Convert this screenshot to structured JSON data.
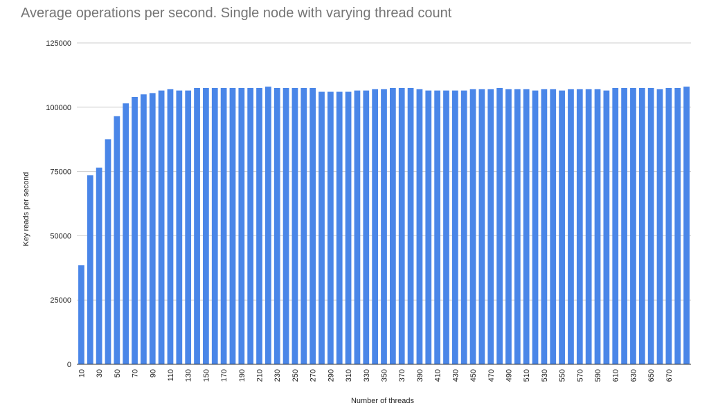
{
  "chart_data": {
    "type": "bar",
    "title": "Average operations per second. Single node with varying thread count",
    "xlabel": "Number of threads",
    "ylabel": "Key reads per second",
    "ylim": [
      0,
      125000
    ],
    "yticks": [
      0,
      25000,
      50000,
      75000,
      100000,
      125000
    ],
    "grid": true,
    "legend": "none",
    "bar_color": "#4a86e8",
    "categories": [
      10,
      20,
      30,
      40,
      50,
      60,
      70,
      80,
      90,
      100,
      110,
      120,
      130,
      140,
      150,
      160,
      170,
      180,
      190,
      200,
      210,
      220,
      230,
      240,
      250,
      260,
      270,
      280,
      290,
      300,
      310,
      320,
      330,
      340,
      350,
      360,
      370,
      380,
      390,
      400,
      410,
      420,
      430,
      440,
      450,
      460,
      470,
      480,
      490,
      500,
      510,
      520,
      530,
      540,
      550,
      560,
      570,
      580,
      590,
      600,
      610,
      620,
      630,
      640,
      650,
      660,
      670,
      680,
      690
    ],
    "x_tick_labels": [
      "10",
      "30",
      "50",
      "70",
      "90",
      "110",
      "130",
      "150",
      "170",
      "190",
      "210",
      "230",
      "250",
      "270",
      "290",
      "310",
      "330",
      "350",
      "370",
      "390",
      "410",
      "430",
      "450",
      "470",
      "490",
      "510",
      "530",
      "550",
      "570",
      "590",
      "610",
      "630",
      "650",
      "670"
    ],
    "values": [
      38500,
      73500,
      76500,
      87500,
      96500,
      101500,
      104000,
      105000,
      105500,
      106500,
      107000,
      106500,
      106500,
      107500,
      107500,
      107500,
      107500,
      107500,
      107500,
      107500,
      107500,
      108000,
      107500,
      107500,
      107500,
      107500,
      107500,
      106000,
      106000,
      106000,
      106000,
      106500,
      106500,
      107000,
      107000,
      107500,
      107500,
      107500,
      107000,
      106500,
      106500,
      106500,
      106500,
      106500,
      107000,
      107000,
      107000,
      107500,
      107000,
      107000,
      107000,
      106500,
      107000,
      107000,
      106500,
      107000,
      107000,
      107000,
      107000,
      106500,
      107500,
      107500,
      107500,
      107500,
      107500,
      107000,
      107500,
      107500,
      108000
    ]
  }
}
